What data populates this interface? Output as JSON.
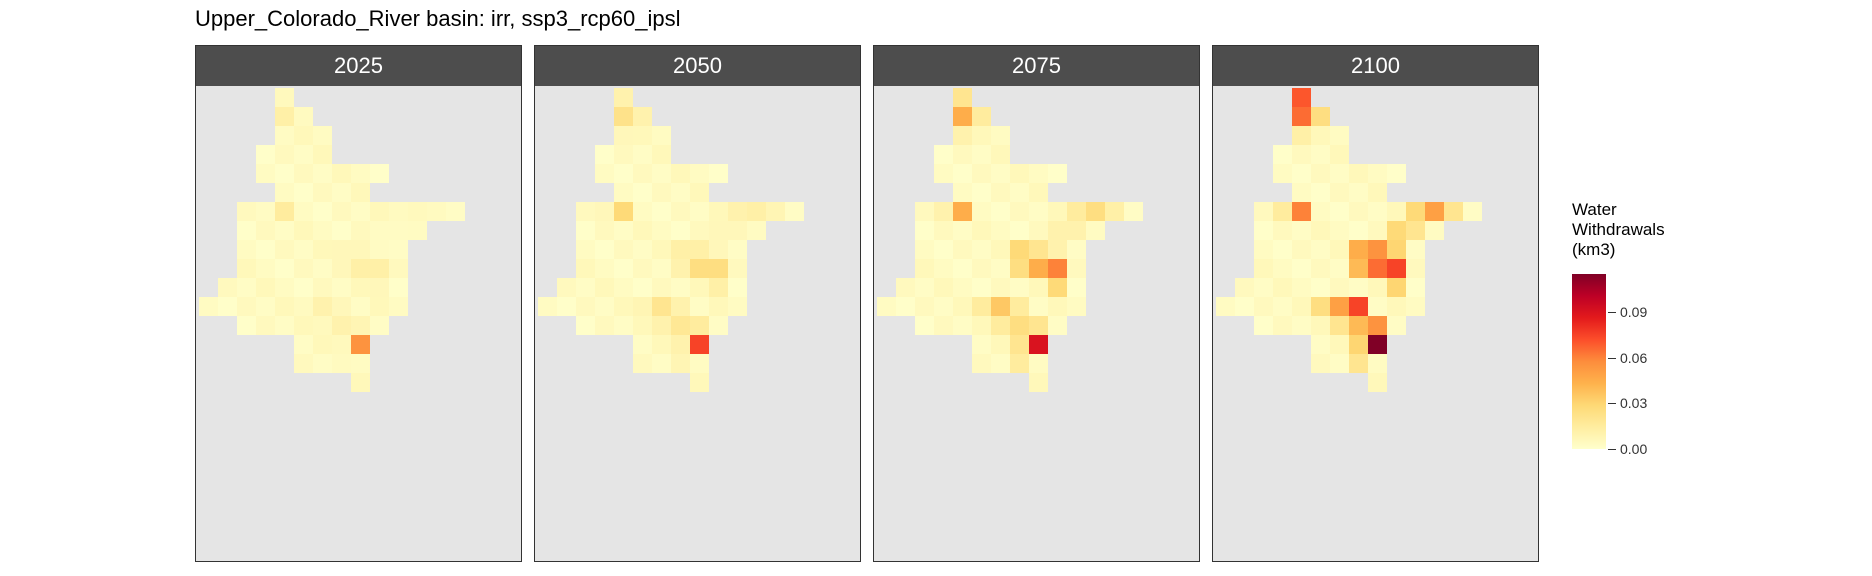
{
  "chart_data": {
    "type": "heatmap",
    "title": "Upper_Colorado_River basin: irr, ssp3_rcp60_ipsl",
    "facets": [
      "2025",
      "2050",
      "2075",
      "2100"
    ],
    "legend": {
      "title_lines": [
        "Water",
        "Withdrawals",
        "(km3)"
      ],
      "ticks": [
        0.0,
        0.03,
        0.06,
        0.09
      ],
      "tick_labels": [
        "0.00",
        "0.03",
        "0.06",
        "0.09"
      ],
      "range": [
        0,
        0.115
      ],
      "colors": [
        "#ffffcc",
        "#ffeda0",
        "#fed976",
        "#feb24c",
        "#fd8d3c",
        "#fc4e2a",
        "#e31a1c",
        "#bd0026",
        "#800026"
      ],
      "placement": "right"
    },
    "panel_background": "#e5e5e5",
    "strip_color": "#4d4d4d",
    "grid_rows": 17,
    "grid_cols": 14,
    "row_spans": [
      [
        4,
        4
      ],
      [
        4,
        5
      ],
      [
        4,
        6
      ],
      [
        3,
        9
      ],
      [
        4,
        8
      ],
      [
        2,
        13
      ],
      [
        2,
        11
      ],
      [
        2,
        10
      ],
      [
        2,
        10
      ],
      [
        1,
        10
      ],
      [
        0,
        10
      ],
      [
        2,
        9
      ],
      [
        4,
        10
      ],
      [
        5,
        8
      ],
      [
        5,
        8
      ],
      [
        8,
        8
      ]
    ],
    "mask_rows": [
      [
        4,
        4
      ],
      [
        4,
        5
      ],
      [
        4,
        6
      ],
      [
        3,
        6
      ],
      [
        3,
        9
      ],
      [
        4,
        8
      ],
      [
        2,
        13
      ],
      [
        2,
        11
      ],
      [
        2,
        10
      ],
      [
        2,
        10
      ],
      [
        1,
        10
      ],
      [
        0,
        10
      ],
      [
        2,
        9
      ],
      [
        5,
        8
      ],
      [
        5,
        8
      ],
      [
        8,
        8
      ]
    ],
    "hotspots": [
      {
        "row": 1,
        "col": 4,
        "values": [
          0.012,
          0.022,
          0.045,
          0.065
        ]
      },
      {
        "row": 0,
        "col": 4,
        "values": [
          0.005,
          0.01,
          0.02,
          0.07
        ]
      },
      {
        "row": 1,
        "col": 5,
        "values": [
          0.004,
          0.01,
          0.015,
          0.025
        ]
      },
      {
        "row": 2,
        "col": 4,
        "values": [
          0.003,
          0.006,
          0.01,
          0.012
        ]
      },
      {
        "row": 6,
        "col": 4,
        "values": [
          0.015,
          0.028,
          0.045,
          0.06
        ]
      },
      {
        "row": 6,
        "col": 3,
        "values": [
          0.003,
          0.006,
          0.01,
          0.015
        ]
      },
      {
        "row": 5,
        "col": 11,
        "values": [
          0.003,
          0.008,
          0.022,
          0.03
        ]
      },
      {
        "row": 6,
        "col": 11,
        "values": [
          0.005,
          0.012,
          0.025,
          0.05
        ]
      },
      {
        "row": 6,
        "col": 10,
        "values": [
          0.004,
          0.01,
          0.015,
          0.028
        ]
      },
      {
        "row": 6,
        "col": 12,
        "values": [
          0.004,
          0.008,
          0.012,
          0.02
        ]
      },
      {
        "row": 7,
        "col": 10,
        "values": [
          0.003,
          0.006,
          0.01,
          0.02
        ]
      },
      {
        "row": 7,
        "col": 9,
        "values": [
          0.003,
          0.006,
          0.01,
          0.028
        ]
      },
      {
        "row": 8,
        "col": 7,
        "values": [
          0.006,
          0.012,
          0.028,
          0.045
        ]
      },
      {
        "row": 8,
        "col": 8,
        "values": [
          0.006,
          0.012,
          0.02,
          0.055
        ]
      },
      {
        "row": 8,
        "col": 9,
        "values": [
          0.003,
          0.006,
          0.01,
          0.03
        ]
      },
      {
        "row": 9,
        "col": 8,
        "values": [
          0.012,
          0.025,
          0.045,
          0.065
        ]
      },
      {
        "row": 9,
        "col": 9,
        "values": [
          0.012,
          0.025,
          0.06,
          0.075
        ]
      },
      {
        "row": 9,
        "col": 7,
        "values": [
          0.006,
          0.01,
          0.025,
          0.04
        ]
      },
      {
        "row": 10,
        "col": 9,
        "values": [
          0.006,
          0.012,
          0.028,
          0.03
        ]
      },
      {
        "row": 10,
        "col": 0,
        "values": [
          0.003,
          0.006,
          0.012,
          0.025
        ]
      },
      {
        "row": 11,
        "col": 6,
        "values": [
          0.01,
          0.02,
          0.035,
          0.05
        ]
      },
      {
        "row": 11,
        "col": 7,
        "values": [
          0.006,
          0.01,
          0.015,
          0.075
        ]
      },
      {
        "row": 11,
        "col": 5,
        "values": [
          0.004,
          0.008,
          0.015,
          0.025
        ]
      },
      {
        "row": 12,
        "col": 7,
        "values": [
          0.01,
          0.018,
          0.025,
          0.04
        ]
      },
      {
        "row": 12,
        "col": 8,
        "values": [
          0.008,
          0.015,
          0.02,
          0.055
        ]
      },
      {
        "row": 12,
        "col": 6,
        "values": [
          0.005,
          0.01,
          0.015,
          0.02
        ]
      },
      {
        "row": 13,
        "col": 8,
        "values": [
          0.055,
          0.075,
          0.09,
          0.115
        ]
      },
      {
        "row": 13,
        "col": 7,
        "values": [
          0.005,
          0.01,
          0.02,
          0.03
        ]
      },
      {
        "row": 14,
        "col": 7,
        "values": [
          0.004,
          0.008,
          0.015,
          0.02
        ]
      }
    ]
  }
}
